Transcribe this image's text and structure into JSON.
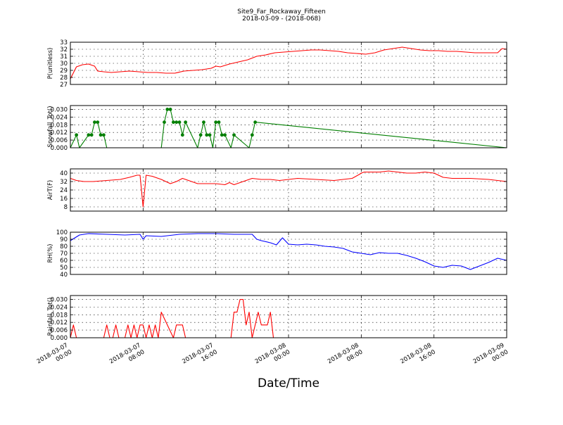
{
  "title": "Site9_Far_Rockaway_Fifteen",
  "subtitle": "2018-03-09 - (2018-068)",
  "xlabel": "Date/Time",
  "x_ticks": [
    {
      "time": "2018-03-07 00:00",
      "label": [
        "2018-03-07",
        "00:00"
      ]
    },
    {
      "time": "2018-03-07 08:00",
      "label": [
        "2018-03-07",
        "08:00"
      ]
    },
    {
      "time": "2018-03-07 16:00",
      "label": [
        "2018-03-07",
        "16:00"
      ]
    },
    {
      "time": "2018-03-08 00:00",
      "label": [
        "2018-03-08",
        "00:00"
      ]
    },
    {
      "time": "2018-03-08 08:00",
      "label": [
        "2018-03-08",
        "08:00"
      ]
    },
    {
      "time": "2018-03-08 16:00",
      "label": [
        "2018-03-08",
        "16:00"
      ]
    },
    {
      "time": "2018-03-09 00:00",
      "label": [
        "2018-03-09",
        "00:00"
      ]
    }
  ],
  "chart_data": [
    {
      "type": "line",
      "ylabel": "P(unitless)",
      "color": "#ff0000",
      "ylim": [
        27,
        33
      ],
      "yticks": [
        27,
        28,
        29,
        30,
        31,
        32,
        33
      ],
      "grid": true,
      "markers": false,
      "x": [
        "2018-03-07 00:00",
        "2018-03-07 00:40",
        "2018-03-07 01:20",
        "2018-03-07 02:00",
        "2018-03-07 02:40",
        "2018-03-07 03:00",
        "2018-03-07 03:40",
        "2018-03-07 04:30",
        "2018-03-07 05:30",
        "2018-03-07 06:30",
        "2018-03-07 07:30",
        "2018-03-07 08:30",
        "2018-03-07 09:30",
        "2018-03-07 10:30",
        "2018-03-07 11:30",
        "2018-03-07 12:30",
        "2018-03-07 13:30",
        "2018-03-07 14:30",
        "2018-03-07 15:30",
        "2018-03-07 16:00",
        "2018-03-07 16:30",
        "2018-03-07 17:30",
        "2018-03-07 18:30",
        "2018-03-07 19:30",
        "2018-03-07 20:30",
        "2018-03-07 21:30",
        "2018-03-07 22:30",
        "2018-03-07 23:30",
        "2018-03-08 00:30",
        "2018-03-08 01:30",
        "2018-03-08 02:30",
        "2018-03-08 03:30",
        "2018-03-08 04:30",
        "2018-03-08 05:30",
        "2018-03-08 06:30",
        "2018-03-08 07:30",
        "2018-03-08 08:30",
        "2018-03-08 09:30",
        "2018-03-08 10:30",
        "2018-03-08 11:30",
        "2018-03-08 12:30",
        "2018-03-08 13:30",
        "2018-03-08 14:30",
        "2018-03-08 15:30",
        "2018-03-08 16:30",
        "2018-03-08 17:30",
        "2018-03-08 18:30",
        "2018-03-08 19:30",
        "2018-03-08 20:30",
        "2018-03-08 21:30",
        "2018-03-08 22:30",
        "2018-03-08 23:00",
        "2018-03-08 23:30",
        "2018-03-09 00:00"
      ],
      "values": [
        27.8,
        29.5,
        29.8,
        29.9,
        29.6,
        28.9,
        28.8,
        28.7,
        28.8,
        28.9,
        28.8,
        28.7,
        28.7,
        28.6,
        28.6,
        28.9,
        29.0,
        29.1,
        29.3,
        29.6,
        29.5,
        29.9,
        30.2,
        30.5,
        31.0,
        31.2,
        31.5,
        31.6,
        31.7,
        31.8,
        31.9,
        31.9,
        31.8,
        31.7,
        31.5,
        31.4,
        31.3,
        31.5,
        31.9,
        32.1,
        32.3,
        32.1,
        31.9,
        31.8,
        31.8,
        31.7,
        31.7,
        31.6,
        31.5,
        31.5,
        31.5,
        31.5,
        32.1,
        32.0
      ]
    },
    {
      "type": "line",
      "ylabel": "Snowfall_Tot()",
      "color": "#007f00",
      "ylim": [
        0,
        0.033
      ],
      "yticks": [
        "0.000",
        "0.006",
        "0.012",
        "0.018",
        "0.024",
        "0.030"
      ],
      "grid": true,
      "markers": true,
      "x": [
        "2018-03-07 00:00",
        "2018-03-07 00:40",
        "2018-03-07 01:00",
        "2018-03-07 02:00",
        "2018-03-07 02:20",
        "2018-03-07 02:40",
        "2018-03-07 03:00",
        "2018-03-07 03:20",
        "2018-03-07 03:40",
        "2018-03-07 04:00",
        "2018-03-07 10:00",
        "2018-03-07 10:20",
        "2018-03-07 10:40",
        "2018-03-07 11:00",
        "2018-03-07 11:20",
        "2018-03-07 11:40",
        "2018-03-07 12:00",
        "2018-03-07 12:20",
        "2018-03-07 12:40",
        "2018-03-07 14:00",
        "2018-03-07 14:20",
        "2018-03-07 14:40",
        "2018-03-07 15:00",
        "2018-03-07 15:20",
        "2018-03-07 15:40",
        "2018-03-07 16:00",
        "2018-03-07 16:20",
        "2018-03-07 16:40",
        "2018-03-07 17:00",
        "2018-03-07 17:40",
        "2018-03-07 18:00",
        "2018-03-07 19:40",
        "2018-03-07 20:00",
        "2018-03-07 20:20",
        "2018-03-09 00:00"
      ],
      "values": [
        0,
        0.01,
        0,
        0.01,
        0.01,
        0.02,
        0.02,
        0.01,
        0.01,
        0,
        0,
        0.02,
        0.03,
        0.03,
        0.02,
        0.02,
        0.02,
        0.01,
        0.02,
        0,
        0.01,
        0.02,
        0.01,
        0.01,
        0,
        0.02,
        0.02,
        0.01,
        0.01,
        0,
        0.01,
        0,
        0.01,
        0.02,
        0
      ]
    },
    {
      "type": "line",
      "ylabel": "AirT(F)",
      "color": "#ff0000",
      "ylim": [
        4,
        44
      ],
      "yticks": [
        8,
        16,
        24,
        32,
        40
      ],
      "grid": true,
      "markers": false,
      "x": [
        "2018-03-07 00:00",
        "2018-03-07 00:40",
        "2018-03-07 01:30",
        "2018-03-07 02:30",
        "2018-03-07 04:00",
        "2018-03-07 05:30",
        "2018-03-07 06:30",
        "2018-03-07 07:20",
        "2018-03-07 07:40",
        "2018-03-07 08:00",
        "2018-03-07 08:20",
        "2018-03-07 09:00",
        "2018-03-07 10:00",
        "2018-03-07 11:00",
        "2018-03-07 11:40",
        "2018-03-07 12:20",
        "2018-03-07 13:00",
        "2018-03-07 14:00",
        "2018-03-07 15:00",
        "2018-03-07 16:00",
        "2018-03-07 17:00",
        "2018-03-07 17:30",
        "2018-03-07 18:00",
        "2018-03-07 19:00",
        "2018-03-07 20:00",
        "2018-03-07 21:00",
        "2018-03-07 22:00",
        "2018-03-07 23:00",
        "2018-03-08 00:00",
        "2018-03-08 01:00",
        "2018-03-08 03:00",
        "2018-03-08 05:00",
        "2018-03-08 06:00",
        "2018-03-08 07:00",
        "2018-03-08 07:50",
        "2018-03-08 08:00",
        "2018-03-08 08:20",
        "2018-03-08 09:00",
        "2018-03-08 10:00",
        "2018-03-08 11:00",
        "2018-03-08 12:00",
        "2018-03-08 13:00",
        "2018-03-08 14:00",
        "2018-03-08 15:00",
        "2018-03-08 16:00",
        "2018-03-08 17:00",
        "2018-03-08 18:00",
        "2018-03-08 20:00",
        "2018-03-08 22:00",
        "2018-03-09 00:00"
      ],
      "values": [
        35,
        33,
        32,
        32,
        33,
        34,
        36,
        38,
        38,
        8,
        38,
        37,
        34,
        30,
        32,
        35,
        33,
        30,
        30,
        30,
        29,
        31,
        29,
        32,
        35,
        34,
        34,
        33,
        34,
        35,
        34,
        33,
        34,
        35,
        39,
        40,
        41,
        41,
        41,
        42,
        41,
        40,
        40,
        41,
        40,
        36,
        35,
        35,
        34,
        32
      ]
    },
    {
      "type": "line",
      "ylabel": "RH(%)",
      "color": "#0000ff",
      "ylim": [
        40,
        100
      ],
      "yticks": [
        40,
        50,
        60,
        70,
        80,
        90,
        100
      ],
      "grid": true,
      "markers": false,
      "x": [
        "2018-03-07 00:00",
        "2018-03-07 01:00",
        "2018-03-07 02:00",
        "2018-03-07 04:00",
        "2018-03-07 06:00",
        "2018-03-07 07:40",
        "2018-03-07 08:00",
        "2018-03-07 08:20",
        "2018-03-07 10:00",
        "2018-03-07 12:00",
        "2018-03-07 14:00",
        "2018-03-07 16:00",
        "2018-03-07 18:00",
        "2018-03-07 19:00",
        "2018-03-07 20:00",
        "2018-03-07 20:30",
        "2018-03-07 21:00",
        "2018-03-07 22:00",
        "2018-03-07 22:40",
        "2018-03-07 23:20",
        "2018-03-08 00:00",
        "2018-03-08 01:00",
        "2018-03-08 02:00",
        "2018-03-08 03:00",
        "2018-03-08 04:00",
        "2018-03-08 05:00",
        "2018-03-08 06:00",
        "2018-03-08 07:00",
        "2018-03-08 08:00",
        "2018-03-08 09:00",
        "2018-03-08 10:00",
        "2018-03-08 11:00",
        "2018-03-08 12:00",
        "2018-03-08 13:00",
        "2018-03-08 14:00",
        "2018-03-08 15:00",
        "2018-03-08 16:00",
        "2018-03-08 17:00",
        "2018-03-08 18:00",
        "2018-03-08 19:00",
        "2018-03-08 20:00",
        "2018-03-08 21:00",
        "2018-03-08 22:00",
        "2018-03-08 23:00",
        "2018-03-09 00:00"
      ],
      "values": [
        88,
        96,
        98,
        97,
        96,
        97,
        90,
        95,
        94,
        97,
        98,
        98,
        97,
        97,
        97,
        90,
        88,
        85,
        82,
        92,
        83,
        82,
        83,
        82,
        80,
        79,
        77,
        72,
        70,
        68,
        71,
        70,
        70,
        67,
        63,
        58,
        52,
        50,
        53,
        52,
        47,
        52,
        57,
        63,
        60
      ]
    },
    {
      "type": "line",
      "ylabel": "Rainfall_Tot()",
      "color": "#ff0000",
      "ylim": [
        0,
        0.033
      ],
      "yticks": [
        "0.000",
        "0.006",
        "0.012",
        "0.018",
        "0.024",
        "0.030"
      ],
      "grid": true,
      "markers": false,
      "x": [
        "2018-03-07 00:00",
        "2018-03-07 00:20",
        "2018-03-07 00:40",
        "2018-03-07 03:40",
        "2018-03-07 04:00",
        "2018-03-07 04:20",
        "2018-03-07 04:40",
        "2018-03-07 05:00",
        "2018-03-07 05:20",
        "2018-03-07 06:00",
        "2018-03-07 06:20",
        "2018-03-07 06:40",
        "2018-03-07 07:00",
        "2018-03-07 07:20",
        "2018-03-07 07:40",
        "2018-03-07 08:00",
        "2018-03-07 08:20",
        "2018-03-07 08:40",
        "2018-03-07 09:00",
        "2018-03-07 09:20",
        "2018-03-07 09:40",
        "2018-03-07 10:00",
        "2018-03-07 11:20",
        "2018-03-07 11:40",
        "2018-03-07 12:20",
        "2018-03-07 12:40",
        "2018-03-07 17:40",
        "2018-03-07 18:00",
        "2018-03-07 18:20",
        "2018-03-07 18:40",
        "2018-03-07 19:00",
        "2018-03-07 19:20",
        "2018-03-07 19:40",
        "2018-03-07 20:00",
        "2018-03-07 20:20",
        "2018-03-07 20:40",
        "2018-03-07 21:00",
        "2018-03-07 21:20",
        "2018-03-07 21:40",
        "2018-03-07 22:00",
        "2018-03-07 22:20",
        "2018-03-09 00:00"
      ],
      "values": [
        0,
        0.01,
        0,
        0,
        0.01,
        0,
        0,
        0.01,
        0,
        0,
        0.01,
        0,
        0.01,
        0,
        0.01,
        0.01,
        0,
        0.01,
        0,
        0.01,
        0,
        0.02,
        0,
        0.01,
        0.01,
        0,
        0,
        0.02,
        0.02,
        0.03,
        0.03,
        0.01,
        0.02,
        0,
        0.01,
        0.02,
        0.01,
        0.01,
        0.01,
        0.02,
        0,
        0
      ]
    }
  ]
}
